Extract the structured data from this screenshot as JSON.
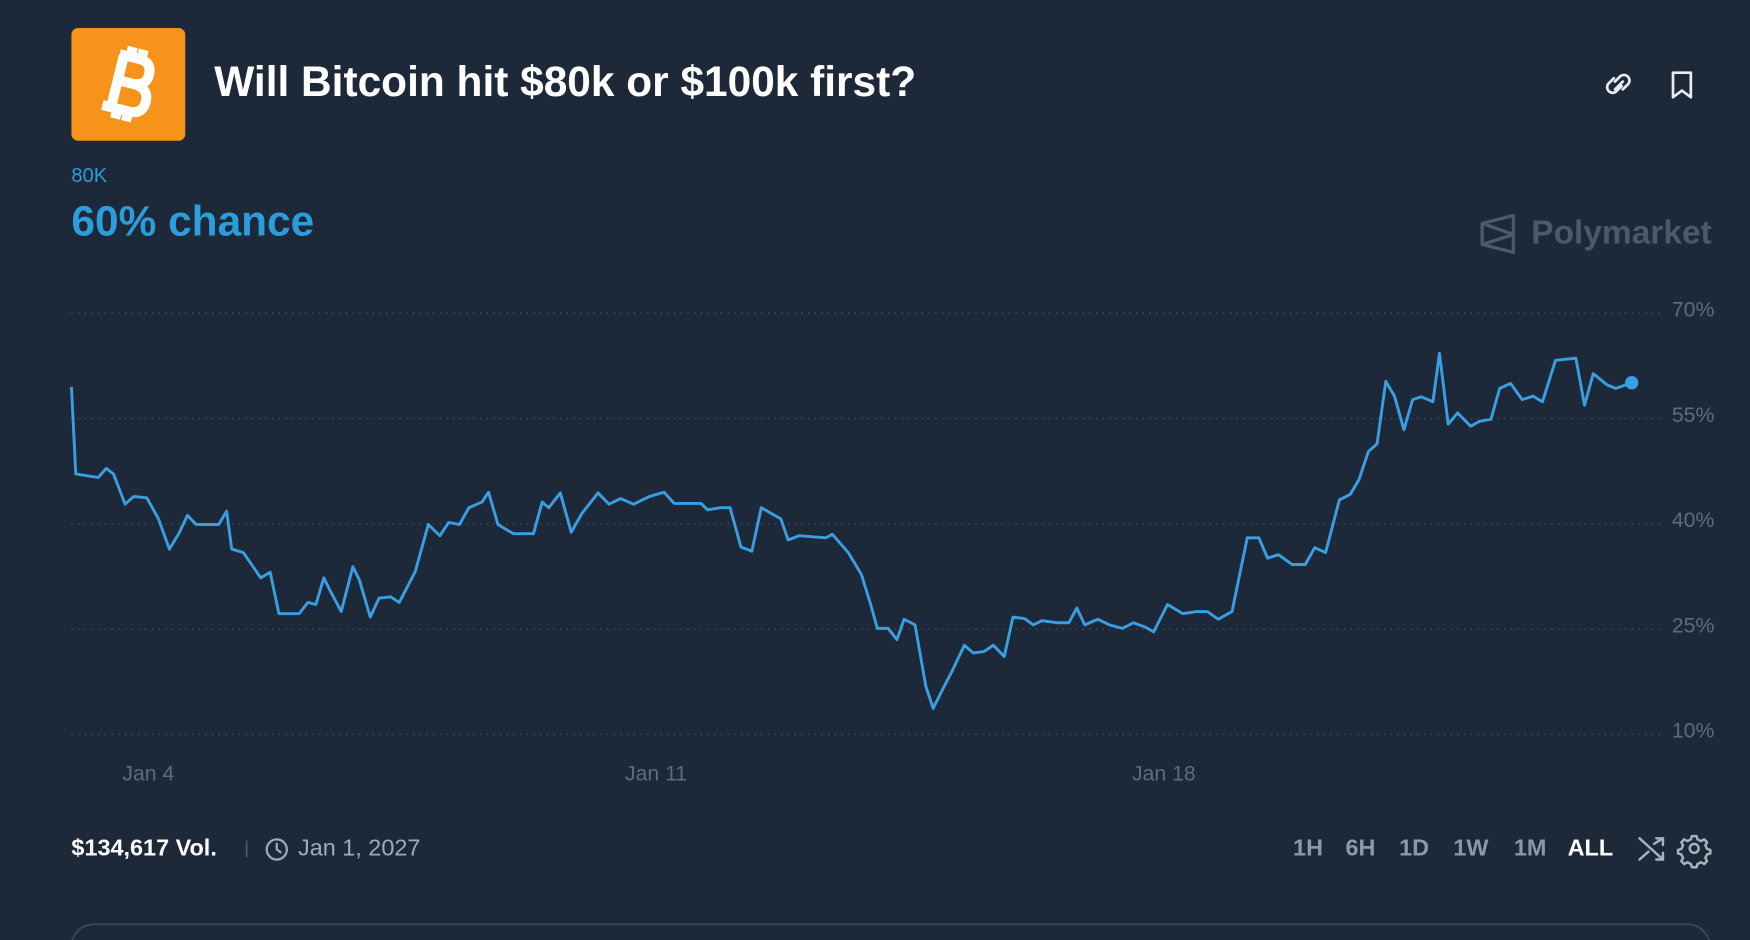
{
  "header": {
    "title": "Will Bitcoin hit $80k or $100k first?"
  },
  "outcome": {
    "label": "80K",
    "chance": "60% chance"
  },
  "brand": "Polymarket",
  "chart_data": {
    "type": "line",
    "x": [
      2.94,
      3.0,
      3.18,
      3.31,
      3.42,
      3.52,
      3.68,
      3.8,
      3.98,
      4.14,
      4.29,
      4.42,
      4.54,
      4.66,
      4.97,
      5.08,
      5.15,
      5.31,
      5.55,
      5.68,
      5.8,
      6.08,
      6.2,
      6.31,
      6.42,
      6.51,
      6.66,
      6.82,
      6.91,
      7.06,
      7.18,
      7.34,
      7.46,
      7.68,
      7.86,
      8.02,
      8.14,
      8.29,
      8.42,
      8.6,
      8.69,
      8.82,
      9.03,
      9.31,
      9.43,
      9.52,
      9.68,
      9.83,
      9.98,
      10.2,
      10.35,
      10.51,
      10.69,
      10.91,
      11.11,
      11.25,
      11.62,
      11.71,
      11.89,
      12.02,
      12.17,
      12.32,
      12.45,
      12.72,
      12.82,
      12.97,
      13.34,
      13.43,
      13.65,
      13.83,
      13.95,
      14.05,
      14.2,
      14.32,
      14.42,
      14.57,
      14.72,
      14.82,
      14.97,
      15.09,
      15.25,
      15.37,
      15.52,
      15.65,
      15.8,
      15.92,
      16.08,
      16.2,
      16.32,
      16.54,
      16.69,
      16.8,
      16.91,
      17.09,
      17.25,
      17.43,
      17.58,
      17.74,
      17.86,
      18.05,
      18.26,
      18.45,
      18.6,
      18.75,
      18.94,
      19.15,
      19.31,
      19.43,
      19.58,
      19.77,
      19.95,
      20.08,
      20.23,
      20.42,
      20.57,
      20.69,
      20.82,
      20.94,
      21.06,
      21.18,
      21.31,
      21.43,
      21.55,
      21.71,
      21.8,
      21.92,
      22.05,
      22.23,
      22.35,
      22.51,
      22.63,
      22.78,
      22.94,
      23.09,
      23.22,
      23.4,
      23.68,
      23.8,
      23.92,
      24.11,
      24.23,
      24.45
    ],
    "series": [
      {
        "color": "#3a9fe2",
        "values": [
          59.5,
          47.1,
          46.8,
          46.6,
          47.9,
          47.1,
          42.8,
          43.9,
          43.7,
          40.7,
          36.4,
          38.6,
          41.2,
          39.9,
          39.9,
          41.8,
          36.4,
          35.9,
          32.3,
          33.1,
          27.2,
          27.2,
          28.8,
          28.5,
          32.3,
          30.4,
          27.5,
          33.9,
          32.0,
          26.7,
          29.4,
          29.6,
          28.8,
          33.2,
          39.9,
          38.3,
          40.2,
          39.9,
          42.3,
          43.1,
          44.5,
          39.9,
          38.6,
          38.6,
          43.1,
          42.3,
          44.4,
          38.8,
          41.5,
          44.4,
          42.8,
          43.6,
          42.8,
          43.9,
          44.5,
          42.9,
          42.9,
          42.0,
          42.3,
          42.3,
          36.7,
          36.1,
          42.3,
          40.7,
          37.7,
          38.3,
          38.0,
          38.5,
          35.9,
          32.8,
          28.8,
          25.1,
          25.1,
          23.5,
          26.4,
          25.6,
          16.8,
          13.7,
          16.8,
          19.2,
          22.7,
          21.6,
          21.8,
          22.7,
          21.1,
          26.7,
          26.5,
          25.6,
          26.2,
          25.9,
          25.9,
          28.0,
          25.6,
          26.4,
          25.6,
          25.1,
          25.9,
          25.3,
          24.6,
          28.5,
          27.2,
          27.5,
          27.5,
          26.4,
          27.5,
          38.0,
          38.0,
          35.1,
          35.6,
          34.2,
          34.2,
          36.6,
          35.9,
          43.4,
          44.2,
          46.3,
          50.3,
          51.4,
          60.3,
          58.2,
          53.4,
          57.7,
          58.1,
          57.4,
          64.3,
          54.2,
          55.8,
          53.9,
          54.6,
          54.9,
          59.3,
          60.0,
          57.7,
          58.2,
          57.4,
          63.3,
          63.6,
          56.9,
          61.4,
          59.8,
          59.3,
          60.1
        ]
      }
    ],
    "xlim": [
      2.94,
      24.85
    ],
    "xticks": [
      {
        "value": 4,
        "label": "Jan 4"
      },
      {
        "value": 11,
        "label": "Jan 11"
      },
      {
        "value": 18,
        "label": "Jan 18"
      }
    ],
    "ylim": [
      6,
      72
    ],
    "yticks": [
      {
        "value": 10,
        "label": "10%"
      },
      {
        "value": 25,
        "label": "25%"
      },
      {
        "value": 40,
        "label": "40%"
      },
      {
        "value": 55,
        "label": "55%"
      },
      {
        "value": 70,
        "label": "70%"
      }
    ],
    "grid": true
  },
  "footer": {
    "volume": "$134,617 Vol.",
    "end_date": "Jan 1, 2027",
    "ranges": [
      "1H",
      "6H",
      "1D",
      "1W",
      "1M",
      "ALL"
    ]
  }
}
